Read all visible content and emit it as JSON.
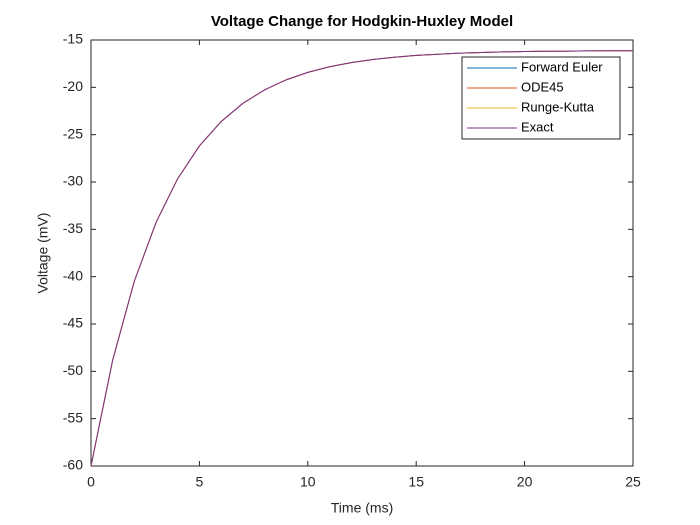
{
  "chart_data": {
    "type": "line",
    "title": "Voltage Change for Hodgkin-Huxley Model",
    "x_label": "Time (ms)",
    "y_label": "Voltage (mV)",
    "x": [
      0,
      1,
      2,
      3,
      4,
      5,
      6,
      7,
      8,
      9,
      10,
      11,
      12,
      13,
      14,
      15,
      16,
      17,
      18,
      19,
      20,
      21,
      22,
      23,
      24,
      25
    ],
    "series": [
      {
        "name": "Forward Euler",
        "color": "#0072bd",
        "values": [
          -60,
          -48.81,
          -40.47,
          -34.27,
          -29.64,
          -26.19,
          -23.62,
          -21.7,
          -20.27,
          -19.21,
          -18.42,
          -17.83,
          -17.39,
          -17.06,
          -16.82,
          -16.63,
          -16.5,
          -16.39,
          -16.32,
          -16.26,
          -16.22,
          -16.19,
          -16.17,
          -16.15,
          -16.14,
          -16.13
        ]
      },
      {
        "name": "ODE45",
        "color": "#d95319",
        "values": [
          -60,
          -48.81,
          -40.47,
          -34.27,
          -29.64,
          -26.19,
          -23.62,
          -21.7,
          -20.27,
          -19.21,
          -18.42,
          -17.83,
          -17.39,
          -17.06,
          -16.82,
          -16.63,
          -16.5,
          -16.39,
          -16.32,
          -16.26,
          -16.22,
          -16.19,
          -16.17,
          -16.15,
          -16.14,
          -16.13
        ]
      },
      {
        "name": "Runge-Kutta",
        "color": "#edb120",
        "values": [
          -60,
          -48.81,
          -40.47,
          -34.27,
          -29.64,
          -26.19,
          -23.62,
          -21.7,
          -20.27,
          -19.21,
          -18.42,
          -17.83,
          -17.39,
          -17.06,
          -16.82,
          -16.63,
          -16.5,
          -16.39,
          -16.32,
          -16.26,
          -16.22,
          -16.19,
          -16.17,
          -16.15,
          -16.14,
          -16.13
        ]
      },
      {
        "name": "Exact",
        "color": "#7e2f8e",
        "values": [
          -60,
          -48.81,
          -40.47,
          -34.27,
          -29.64,
          -26.19,
          -23.62,
          -21.7,
          -20.27,
          -19.21,
          -18.42,
          -17.83,
          -17.39,
          -17.06,
          -16.82,
          -16.63,
          -16.5,
          -16.39,
          -16.32,
          -16.26,
          -16.22,
          -16.19,
          -16.17,
          -16.15,
          -16.14,
          -16.13
        ]
      }
    ],
    "xlim": [
      0,
      25
    ],
    "xticks": [
      0,
      5,
      10,
      15,
      20,
      25
    ],
    "ylim": [
      -60,
      -15
    ],
    "yticks": [
      -60,
      -55,
      -50,
      -45,
      -40,
      -35,
      -30,
      -25,
      -20,
      -15
    ],
    "legend": "northeast",
    "grid": false
  }
}
